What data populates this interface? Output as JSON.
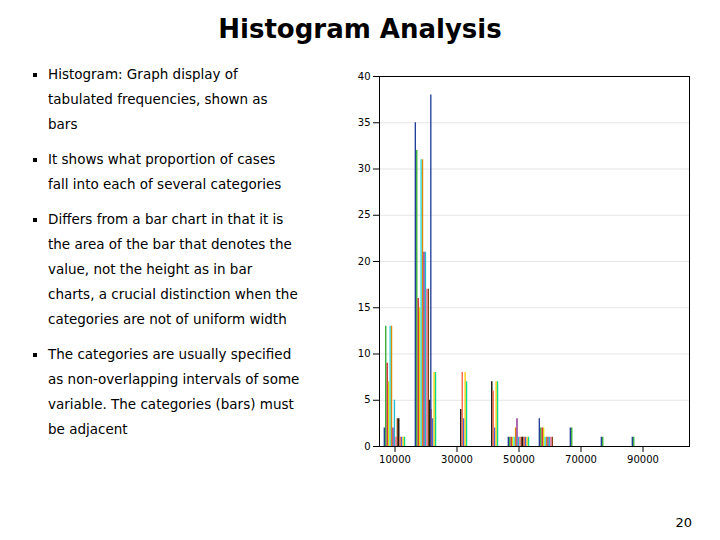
{
  "chart_data": {
    "type": "bar",
    "title": "Histogram Analysis",
    "x": [
      10000,
      20000,
      25000,
      30000,
      40000,
      50000,
      60000,
      70000,
      80000,
      90000
    ],
    "series": [
      {
        "color": "#1F3D99",
        "values": [
          2,
          35,
          38,
          0,
          0,
          1,
          3,
          2,
          1,
          1
        ]
      },
      {
        "color": "#2EAA2E",
        "values": [
          13,
          32,
          0,
          0,
          0,
          1,
          2,
          2,
          1,
          1
        ]
      },
      {
        "color": "#CC2222",
        "values": [
          9,
          16,
          0,
          0,
          0,
          1,
          2,
          0,
          0,
          0
        ]
      },
      {
        "color": "#DDDD00",
        "values": [
          7,
          15,
          0,
          0,
          0,
          1,
          2,
          0,
          0,
          0
        ]
      },
      {
        "color": "#22DDDD",
        "values": [
          13,
          31,
          0,
          0,
          0,
          1,
          1,
          0,
          0,
          0
        ]
      },
      {
        "color": "#DD8800",
        "values": [
          13,
          31,
          0,
          0,
          0,
          2,
          1,
          0,
          0,
          0
        ]
      },
      {
        "color": "#882288",
        "values": [
          2,
          21,
          0,
          0,
          0,
          3,
          1,
          0,
          0,
          0
        ]
      },
      {
        "color": "#22BBCC",
        "values": [
          5,
          21,
          0,
          0,
          0,
          1,
          1,
          0,
          0,
          0
        ]
      },
      {
        "color": "#EE6699",
        "values": [
          1,
          17,
          0,
          0,
          0,
          1,
          1,
          0,
          0,
          0
        ]
      },
      {
        "color": "#884411",
        "values": [
          3,
          17,
          0,
          0,
          0,
          1,
          1,
          0,
          0,
          0
        ]
      },
      {
        "color": "#000000",
        "values": [
          3,
          5,
          0,
          4,
          7,
          1,
          0,
          0,
          0,
          0
        ]
      },
      {
        "color": "#FF6347",
        "values": [
          1,
          4,
          0,
          8,
          6,
          1,
          0,
          0,
          0,
          0
        ]
      },
      {
        "color": "#4466DD",
        "values": [
          1,
          3,
          0,
          3,
          2,
          1,
          0,
          0,
          0,
          0
        ]
      },
      {
        "color": "#FFCC00",
        "values": [
          1,
          8,
          0,
          8,
          7,
          1,
          0,
          0,
          0,
          0
        ]
      },
      {
        "color": "#00DD88",
        "values": [
          1,
          8,
          0,
          7,
          7,
          1,
          0,
          0,
          0,
          0
        ]
      }
    ],
    "xlim": [
      5000,
      105000
    ],
    "xticks": [
      10000,
      30000,
      50000,
      70000,
      90000
    ],
    "ylim": [
      0,
      40
    ],
    "yticks": [
      0,
      5,
      10,
      15,
      20,
      25,
      30,
      35,
      40
    ],
    "grid": "y",
    "annotations": [
      {
        "lines": [
          "Histogram: Graph display of",
          "tabulated frequencies, shown as",
          "bars"
        ]
      },
      {
        "lines": [
          "It shows what proportion of cases",
          "fall into each of several categories"
        ]
      },
      {
        "lines": [
          "Differs from a bar chart in that it is",
          "the area of the bar that denotes the",
          "value, not the height as in bar",
          "charts, a crucial distinction when the",
          "categories are not of uniform width"
        ]
      },
      {
        "lines": [
          "The categories are usually specified",
          "as non-overlapping intervals of some",
          "variable. The categories (bars) must",
          "be adjacent"
        ]
      },
      {
        "text": "20"
      }
    ]
  }
}
